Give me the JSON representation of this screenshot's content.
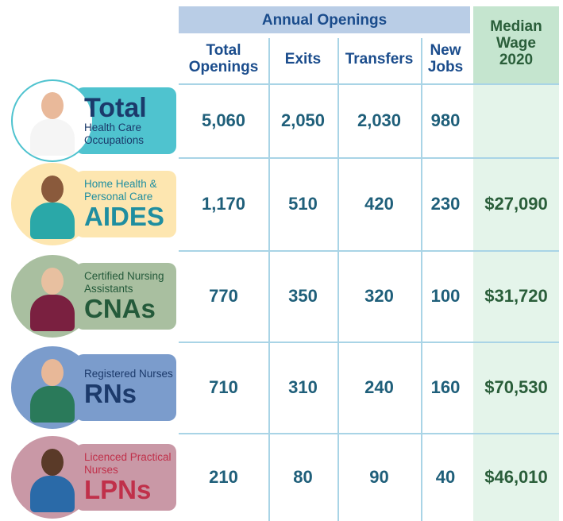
{
  "header": {
    "group": "Annual Openings",
    "columns": [
      [
        "Total",
        "Openings"
      ],
      [
        "Exits"
      ],
      [
        "Transfers"
      ],
      [
        "New",
        "Jobs"
      ],
      [
        "Median",
        "Wage",
        "2020"
      ]
    ]
  },
  "rows": [
    {
      "small": "Health Care Occupations",
      "big": "Total",
      "big_first": true,
      "values": [
        "5,060",
        "2,050",
        "2,030",
        "980",
        null
      ]
    },
    {
      "small": "Home Health & Personal Care",
      "big": "AIDES",
      "values": [
        "1,170",
        "510",
        "420",
        "230",
        "$27,090"
      ]
    },
    {
      "small": "Certified Nursing Assistants",
      "big": "CNAs",
      "values": [
        "770",
        "350",
        "320",
        "100",
        "$31,720"
      ]
    },
    {
      "small": "Registered Nurses",
      "big": "RNs",
      "values": [
        "710",
        "310",
        "240",
        "160",
        "$70,530"
      ]
    },
    {
      "small": "Licenced Practical Nurses",
      "big": "LPNs",
      "values": [
        "210",
        "80",
        "90",
        "40",
        "$46,010"
      ]
    }
  ]
}
